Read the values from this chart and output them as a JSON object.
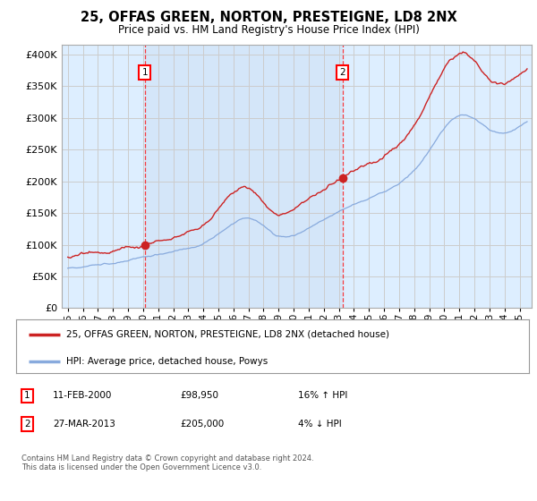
{
  "title": "25, OFFAS GREEN, NORTON, PRESTEIGNE, LD8 2NX",
  "subtitle": "Price paid vs. HM Land Registry's House Price Index (HPI)",
  "ytick_vals": [
    0,
    50000,
    100000,
    150000,
    200000,
    250000,
    300000,
    350000,
    400000
  ],
  "ytick_labels": [
    "£0",
    "£50K",
    "£100K",
    "£150K",
    "£200K",
    "£250K",
    "£300K",
    "£350K",
    "£400K"
  ],
  "ylim": [
    0,
    415000
  ],
  "xlim": [
    1994.6,
    2025.8
  ],
  "sale1_date": 2000.11,
  "sale1_price": 98950,
  "sale1_label": "1",
  "sale2_date": 2013.24,
  "sale2_price": 205000,
  "sale2_label": "2",
  "line_color_price": "#cc2222",
  "line_color_hpi": "#88aadd",
  "grid_color": "#cccccc",
  "bg_color": "#ddeeff",
  "bg_color_highlight": "#cce0f5",
  "legend_label_price": "25, OFFAS GREEN, NORTON, PRESTEIGNE, LD8 2NX (detached house)",
  "legend_label_hpi": "HPI: Average price, detached house, Powys",
  "footer": "Contains HM Land Registry data © Crown copyright and database right 2024.\nThis data is licensed under the Open Government Licence v3.0.",
  "xtick_years": [
    1995,
    1996,
    1997,
    1998,
    1999,
    2000,
    2001,
    2002,
    2003,
    2004,
    2005,
    2006,
    2007,
    2008,
    2009,
    2010,
    2011,
    2012,
    2013,
    2014,
    2015,
    2016,
    2017,
    2018,
    2019,
    2020,
    2021,
    2022,
    2023,
    2024,
    2025
  ]
}
